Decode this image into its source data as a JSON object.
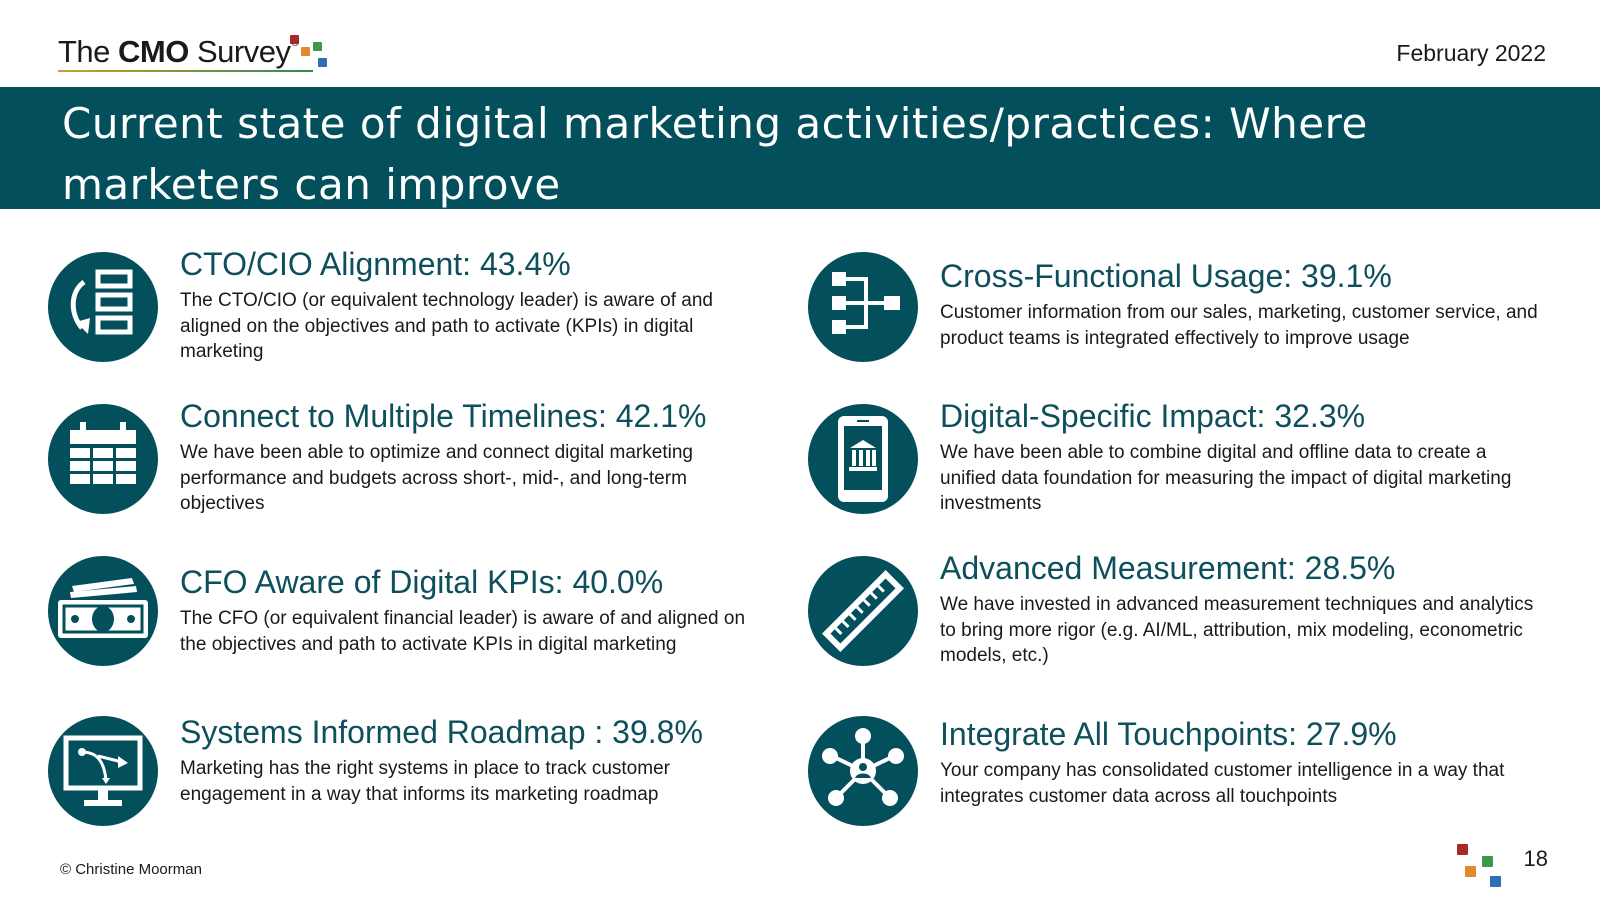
{
  "header": {
    "logo": {
      "text_pre": "The ",
      "text_bold": "CMO",
      "text_post": " Survey",
      "reg_mark": "®"
    },
    "date": "February 2022"
  },
  "title": "Current state of digital marketing activities/practices: Where marketers can improve",
  "items": [
    {
      "title": "CTO/CIO Alignment:  43.4%",
      "desc": "The CTO/CIO (or equivalent technology leader) is aware of and aligned on the objectives and path to activate (KPIs) in digital marketing",
      "icon": "list-refresh-icon"
    },
    {
      "title": "Connect to Multiple Timelines:  42.1%",
      "desc": "We have been able to optimize and connect digital marketing performance and budgets across short-, mid-, and long-term objectives",
      "icon": "calendar-icon"
    },
    {
      "title": "CFO Aware of Digital KPIs:  40.0%",
      "desc": "The CFO (or equivalent financial leader) is aware of and aligned on the objectives and path to activate KPIs in digital marketing",
      "icon": "money-icon"
    },
    {
      "title": "Systems Informed Roadmap :  39.8%",
      "desc": "Marketing has the right systems in place to track customer engagement in a way that informs its marketing roadmap",
      "icon": "monitor-roadmap-icon"
    },
    {
      "title": "Cross-Functional Usage:  39.1%",
      "desc": "Customer information from our sales, marketing, customer service, and product teams is integrated effectively to improve usage",
      "icon": "flowchart-icon"
    },
    {
      "title": "Digital-Specific Impact:  32.3%",
      "desc": "We have been able to combine digital and offline data to create a unified data foundation for measuring the impact of digital marketing investments",
      "icon": "mobile-bank-icon"
    },
    {
      "title": "Advanced Measurement:  28.5%",
      "desc": "We have invested in advanced measurement techniques and analytics to bring more rigor (e.g. AI/ML, attribution, mix modeling, econometric models, etc.)",
      "icon": "ruler-icon"
    },
    {
      "title": "Integrate All Touchpoints:  27.9%",
      "desc": "Your company has consolidated customer intelligence in a way that integrates customer data across all touchpoints",
      "icon": "network-user-icon"
    }
  ],
  "footer": {
    "copyright": "© Christine Moorman",
    "page_number": "18"
  },
  "colors": {
    "accent": "#03505c",
    "title_text": "#0e4f5c",
    "logo_red": "#a52a2a",
    "logo_orange": "#e08a2e",
    "logo_green": "#3a9a4a",
    "logo_blue": "#2e6fb5"
  }
}
